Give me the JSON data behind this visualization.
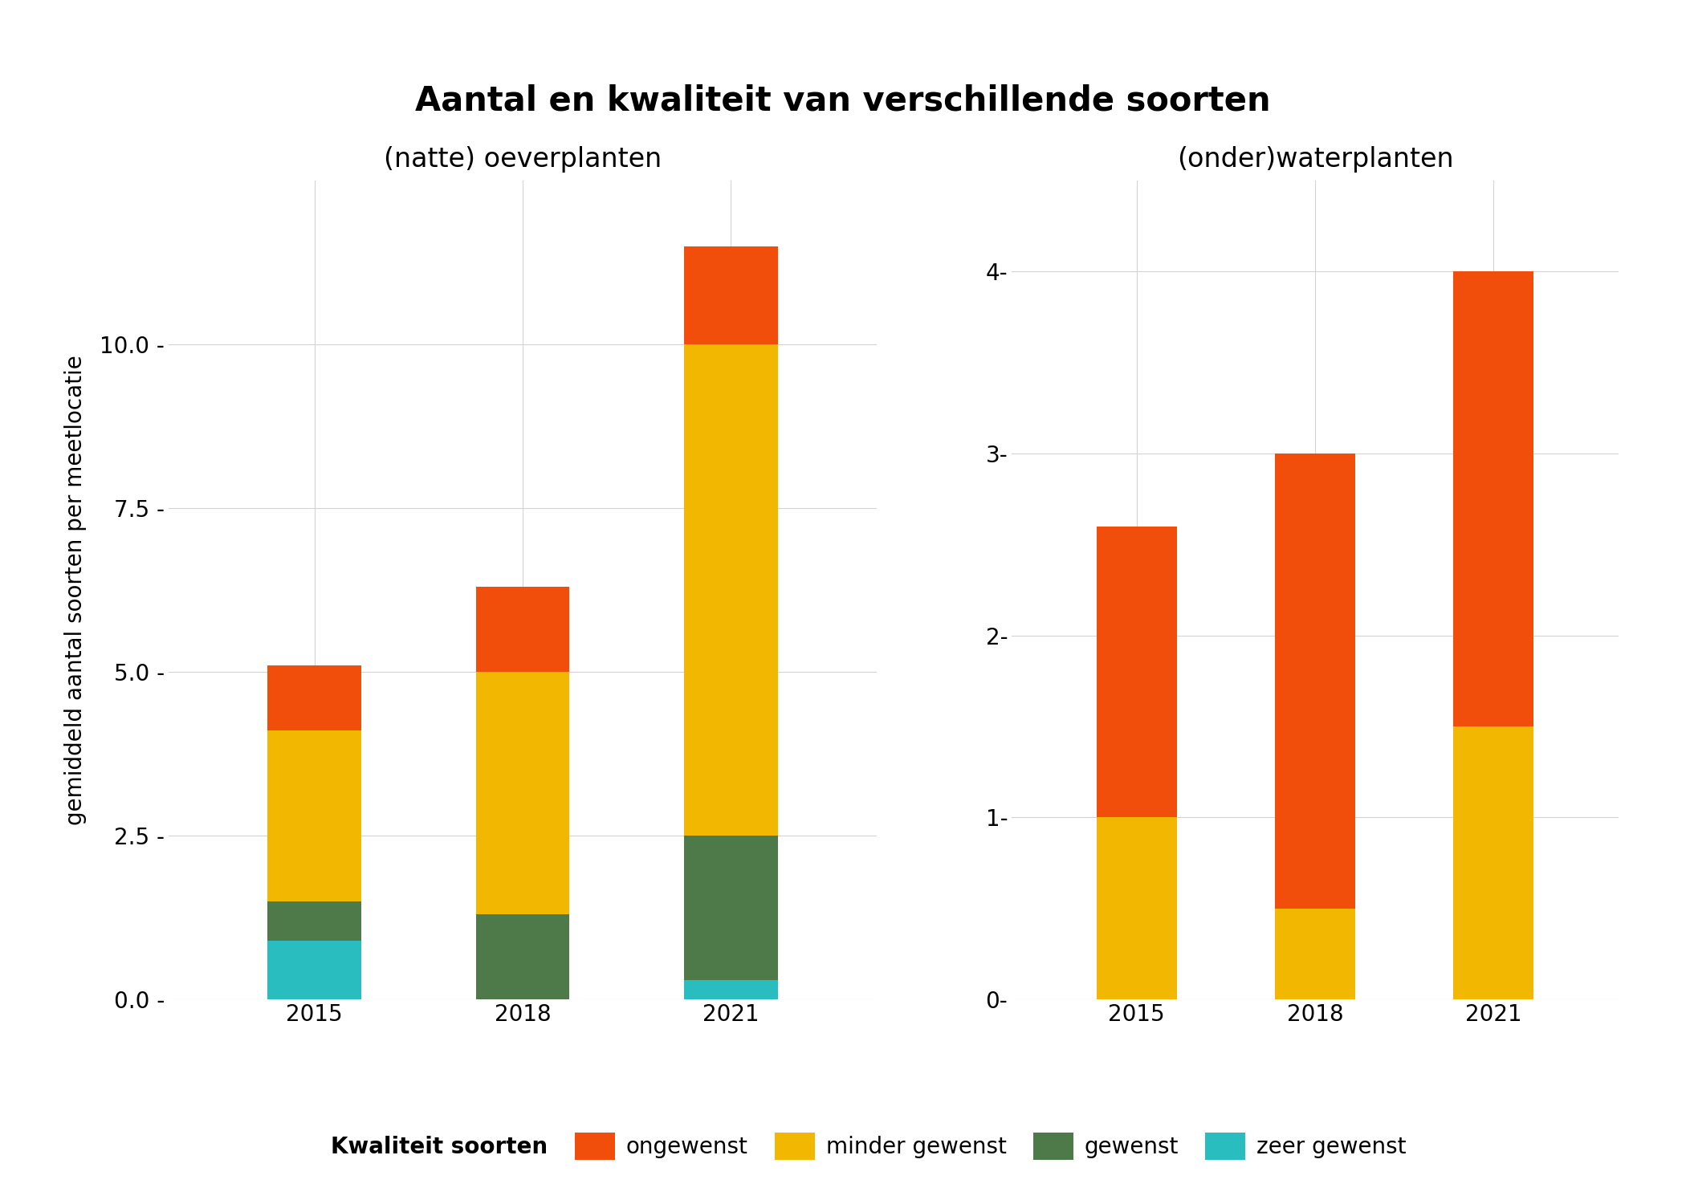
{
  "title": "Aantal en kwaliteit van verschillende soorten",
  "subtitle_left": "(natte) oeverplanten",
  "subtitle_right": "(onder)waterplanten",
  "ylabel": "gemiddeld aantal soorten per meetlocatie",
  "years": [
    "2015",
    "2018",
    "2021"
  ],
  "left": {
    "zeer_gewenst": [
      0.9,
      0.0,
      0.3
    ],
    "gewenst": [
      0.6,
      1.3,
      2.2
    ],
    "minder_gewenst": [
      2.6,
      3.7,
      7.5
    ],
    "ongewenst": [
      1.0,
      1.3,
      1.5
    ]
  },
  "right": {
    "zeer_gewenst": [
      0.0,
      0.0,
      0.0
    ],
    "gewenst": [
      0.0,
      0.0,
      0.0
    ],
    "minder_gewenst": [
      1.0,
      0.5,
      1.5
    ],
    "ongewenst": [
      1.6,
      2.5,
      2.5
    ]
  },
  "colors": {
    "zeer_gewenst": "#29BDC0",
    "gewenst": "#4E7A4A",
    "minder_gewenst": "#F2B700",
    "ongewenst": "#F04E0A"
  },
  "left_yticks": [
    0.0,
    2.5,
    5.0,
    7.5,
    10.0
  ],
  "left_ytick_labels": [
    "0.0 -",
    "2.5 -",
    "5.0 -",
    "7.5 -",
    "10.0 -"
  ],
  "right_yticks": [
    0,
    1,
    2,
    3,
    4
  ],
  "right_ytick_labels": [
    "0-",
    "1-",
    "2-",
    "3-",
    "4-"
  ],
  "left_ylim": [
    0,
    12.5
  ],
  "right_ylim": [
    0,
    4.5
  ],
  "background_color": "#FFFFFF",
  "left_bar_width": 0.45,
  "right_bar_width": 0.45,
  "grid_color": "#D3D3D3",
  "title_fontsize": 30,
  "subtitle_fontsize": 24,
  "tick_fontsize": 20,
  "ylabel_fontsize": 20,
  "legend_fontsize": 20,
  "categories": [
    "zeer_gewenst",
    "gewenst",
    "minder_gewenst",
    "ongewenst"
  ]
}
